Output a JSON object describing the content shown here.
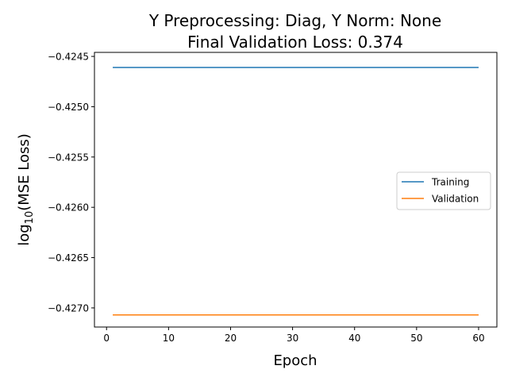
{
  "chart_data": {
    "type": "line",
    "title_lines": [
      "Y Preprocessing: Diag, Y Norm: None",
      "Final Validation Loss: 0.374"
    ],
    "xlabel": "Epoch",
    "ylabel": {
      "prefix": "log",
      "subscript": "10",
      "suffix": "(MSE Loss)"
    },
    "xlim": [
      -1.95,
      62.95
    ],
    "ylim": [
      -0.42719,
      -0.42446
    ],
    "xticks": [
      0,
      10,
      20,
      30,
      40,
      50,
      60
    ],
    "yticks": [
      -0.4245,
      -0.425,
      -0.4255,
      -0.426,
      -0.4265,
      -0.427
    ],
    "ytick_labels": [
      "−0.4245",
      "−0.4250",
      "−0.4255",
      "−0.4260",
      "−0.4265",
      "−0.4270"
    ],
    "grid": false,
    "legend_position": "center-right",
    "series": [
      {
        "name": "Training",
        "color": "#1f77b4",
        "x": [
          1,
          60
        ],
        "y": [
          -0.42461,
          -0.42461
        ]
      },
      {
        "name": "Validation",
        "color": "#ff7f0e",
        "x": [
          1,
          60
        ],
        "y": [
          -0.42707,
          -0.42707
        ]
      }
    ]
  }
}
